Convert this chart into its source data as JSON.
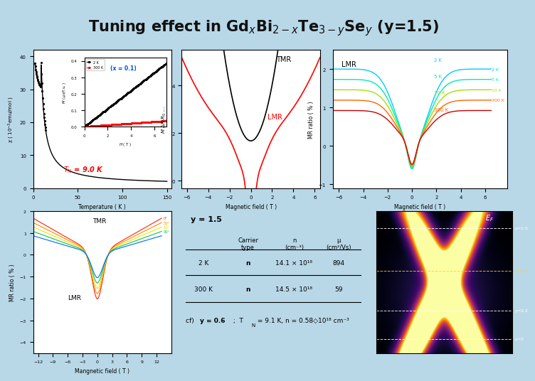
{
  "bg_color": "#b8d8e8",
  "title": "Tuning effect in Gd$_x$Bi$_{2-x}$Te$_{3-y}$Se$_y$ (y=1.5)",
  "strip_color": "#4a90c4",
  "panel_bg": "white",
  "tN_text": "$T_N$ = 9.0 K",
  "x01_text": "(x = 0.1)",
  "tmr_label": "TMR",
  "lmr_label": "LMR",
  "table_y15": "y = 1.5",
  "cf_text": "cf) y = 0.6 ;  T",
  "ef_label": "$E_F$",
  "y_labels": [
    "y=1.5",
    "y=0.6",
    "y=0.2",
    "y=0"
  ],
  "y_label_colors": [
    "white",
    "#ffcc44",
    "white",
    "white"
  ],
  "right_panel_colors": [
    "#00ccff",
    "#00eeaa",
    "#aadd00",
    "#ff6600",
    "#cc0000"
  ],
  "right_panel_temps": [
    "2 K",
    "5 K",
    "10 K",
    "300 K",
    ""
  ]
}
